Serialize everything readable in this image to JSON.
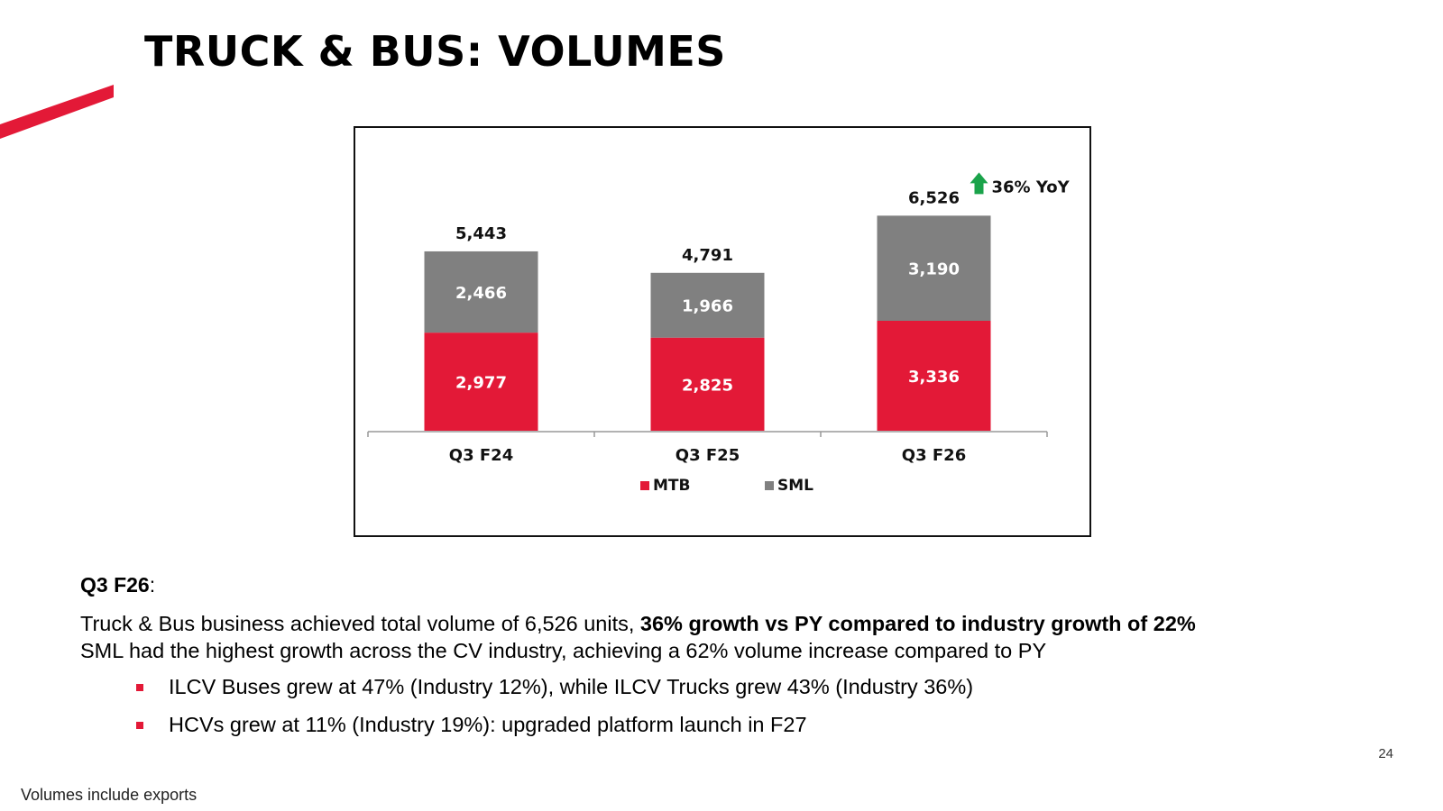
{
  "slide": {
    "title": "TRUCK & BUS: VOLUMES",
    "accent_color": "#e31937",
    "page_number": "24",
    "footnote": "Volumes include exports"
  },
  "chart_data": {
    "type": "bar",
    "stacked": true,
    "categories": [
      "Q3 F24",
      "Q3 F25",
      "Q3 F26"
    ],
    "series": [
      {
        "name": "MTB",
        "color": "#e31937",
        "values": [
          2977,
          2825,
          3336
        ],
        "labels": [
          "2,977",
          "2,825",
          "3,336"
        ]
      },
      {
        "name": "SML",
        "color": "#808080",
        "values": [
          2466,
          1966,
          3190
        ],
        "labels": [
          "2,466",
          "1,966",
          "3,190"
        ]
      }
    ],
    "totals": [
      5443,
      4791,
      6526
    ],
    "total_labels": [
      "5,443",
      "4,791",
      "6,526"
    ],
    "annotation": {
      "text": "36% YoY",
      "icon": "up-arrow-icon",
      "color": "#1aa34a",
      "category": "Q3 F26"
    },
    "legend_position": "bottom",
    "grid": false,
    "ylim": [
      0,
      7000
    ]
  },
  "notes": {
    "heading_bold": "Q3 F26",
    "heading_suffix": ":",
    "para_start": "Truck & Bus business achieved total volume of 6,526 units, ",
    "para_bold": "36% growth vs PY compared to industry growth of 22%",
    "line2": "SML had the highest growth across the CV industry, achieving a 62% volume increase compared to PY",
    "bullets": [
      "ILCV Buses grew at 47% (Industry 12%), while ILCV Trucks grew 43% (Industry 36%)",
      "HCVs grew at 11%  (Industry 19%): upgraded platform launch in F27"
    ]
  }
}
